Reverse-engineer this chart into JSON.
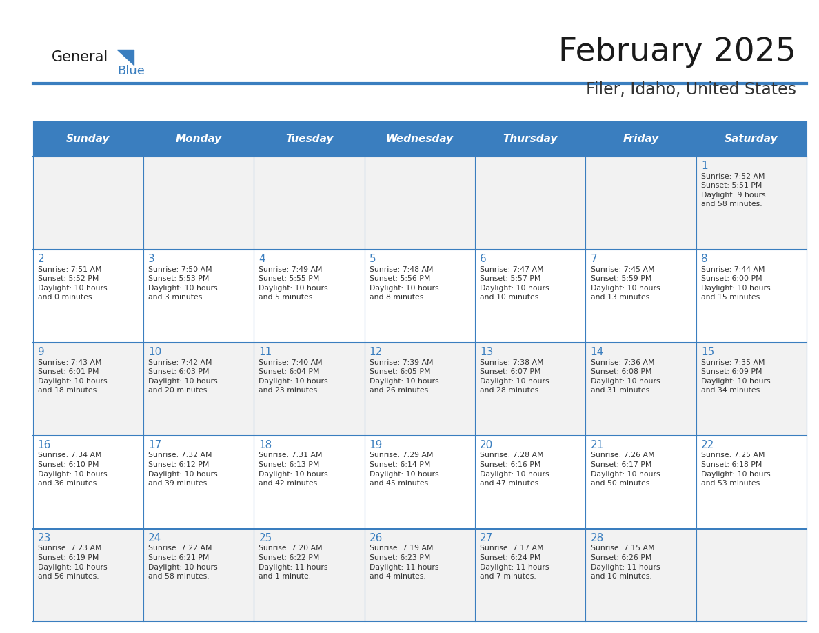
{
  "title": "February 2025",
  "subtitle": "Filer, Idaho, United States",
  "days_of_week": [
    "Sunday",
    "Monday",
    "Tuesday",
    "Wednesday",
    "Thursday",
    "Friday",
    "Saturday"
  ],
  "header_bg": "#3A7EBF",
  "header_text": "#FFFFFF",
  "row_bg_even": "#F2F2F2",
  "row_bg_odd": "#FFFFFF",
  "border_color": "#3A7EBF",
  "day_num_color": "#3A7EBF",
  "cell_text_color": "#333333",
  "title_color": "#1a1a1a",
  "subtitle_color": "#333333",
  "logo_general_color": "#1a1a1a",
  "logo_blue_color": "#3A7EBF",
  "weeks": [
    [
      {
        "day": null,
        "info": null
      },
      {
        "day": null,
        "info": null
      },
      {
        "day": null,
        "info": null
      },
      {
        "day": null,
        "info": null
      },
      {
        "day": null,
        "info": null
      },
      {
        "day": null,
        "info": null
      },
      {
        "day": 1,
        "info": "Sunrise: 7:52 AM\nSunset: 5:51 PM\nDaylight: 9 hours\nand 58 minutes."
      }
    ],
    [
      {
        "day": 2,
        "info": "Sunrise: 7:51 AM\nSunset: 5:52 PM\nDaylight: 10 hours\nand 0 minutes."
      },
      {
        "day": 3,
        "info": "Sunrise: 7:50 AM\nSunset: 5:53 PM\nDaylight: 10 hours\nand 3 minutes."
      },
      {
        "day": 4,
        "info": "Sunrise: 7:49 AM\nSunset: 5:55 PM\nDaylight: 10 hours\nand 5 minutes."
      },
      {
        "day": 5,
        "info": "Sunrise: 7:48 AM\nSunset: 5:56 PM\nDaylight: 10 hours\nand 8 minutes."
      },
      {
        "day": 6,
        "info": "Sunrise: 7:47 AM\nSunset: 5:57 PM\nDaylight: 10 hours\nand 10 minutes."
      },
      {
        "day": 7,
        "info": "Sunrise: 7:45 AM\nSunset: 5:59 PM\nDaylight: 10 hours\nand 13 minutes."
      },
      {
        "day": 8,
        "info": "Sunrise: 7:44 AM\nSunset: 6:00 PM\nDaylight: 10 hours\nand 15 minutes."
      }
    ],
    [
      {
        "day": 9,
        "info": "Sunrise: 7:43 AM\nSunset: 6:01 PM\nDaylight: 10 hours\nand 18 minutes."
      },
      {
        "day": 10,
        "info": "Sunrise: 7:42 AM\nSunset: 6:03 PM\nDaylight: 10 hours\nand 20 minutes."
      },
      {
        "day": 11,
        "info": "Sunrise: 7:40 AM\nSunset: 6:04 PM\nDaylight: 10 hours\nand 23 minutes."
      },
      {
        "day": 12,
        "info": "Sunrise: 7:39 AM\nSunset: 6:05 PM\nDaylight: 10 hours\nand 26 minutes."
      },
      {
        "day": 13,
        "info": "Sunrise: 7:38 AM\nSunset: 6:07 PM\nDaylight: 10 hours\nand 28 minutes."
      },
      {
        "day": 14,
        "info": "Sunrise: 7:36 AM\nSunset: 6:08 PM\nDaylight: 10 hours\nand 31 minutes."
      },
      {
        "day": 15,
        "info": "Sunrise: 7:35 AM\nSunset: 6:09 PM\nDaylight: 10 hours\nand 34 minutes."
      }
    ],
    [
      {
        "day": 16,
        "info": "Sunrise: 7:34 AM\nSunset: 6:10 PM\nDaylight: 10 hours\nand 36 minutes."
      },
      {
        "day": 17,
        "info": "Sunrise: 7:32 AM\nSunset: 6:12 PM\nDaylight: 10 hours\nand 39 minutes."
      },
      {
        "day": 18,
        "info": "Sunrise: 7:31 AM\nSunset: 6:13 PM\nDaylight: 10 hours\nand 42 minutes."
      },
      {
        "day": 19,
        "info": "Sunrise: 7:29 AM\nSunset: 6:14 PM\nDaylight: 10 hours\nand 45 minutes."
      },
      {
        "day": 20,
        "info": "Sunrise: 7:28 AM\nSunset: 6:16 PM\nDaylight: 10 hours\nand 47 minutes."
      },
      {
        "day": 21,
        "info": "Sunrise: 7:26 AM\nSunset: 6:17 PM\nDaylight: 10 hours\nand 50 minutes."
      },
      {
        "day": 22,
        "info": "Sunrise: 7:25 AM\nSunset: 6:18 PM\nDaylight: 10 hours\nand 53 minutes."
      }
    ],
    [
      {
        "day": 23,
        "info": "Sunrise: 7:23 AM\nSunset: 6:19 PM\nDaylight: 10 hours\nand 56 minutes."
      },
      {
        "day": 24,
        "info": "Sunrise: 7:22 AM\nSunset: 6:21 PM\nDaylight: 10 hours\nand 58 minutes."
      },
      {
        "day": 25,
        "info": "Sunrise: 7:20 AM\nSunset: 6:22 PM\nDaylight: 11 hours\nand 1 minute."
      },
      {
        "day": 26,
        "info": "Sunrise: 7:19 AM\nSunset: 6:23 PM\nDaylight: 11 hours\nand 4 minutes."
      },
      {
        "day": 27,
        "info": "Sunrise: 7:17 AM\nSunset: 6:24 PM\nDaylight: 11 hours\nand 7 minutes."
      },
      {
        "day": 28,
        "info": "Sunrise: 7:15 AM\nSunset: 6:26 PM\nDaylight: 11 hours\nand 10 minutes."
      },
      {
        "day": null,
        "info": null
      }
    ]
  ]
}
